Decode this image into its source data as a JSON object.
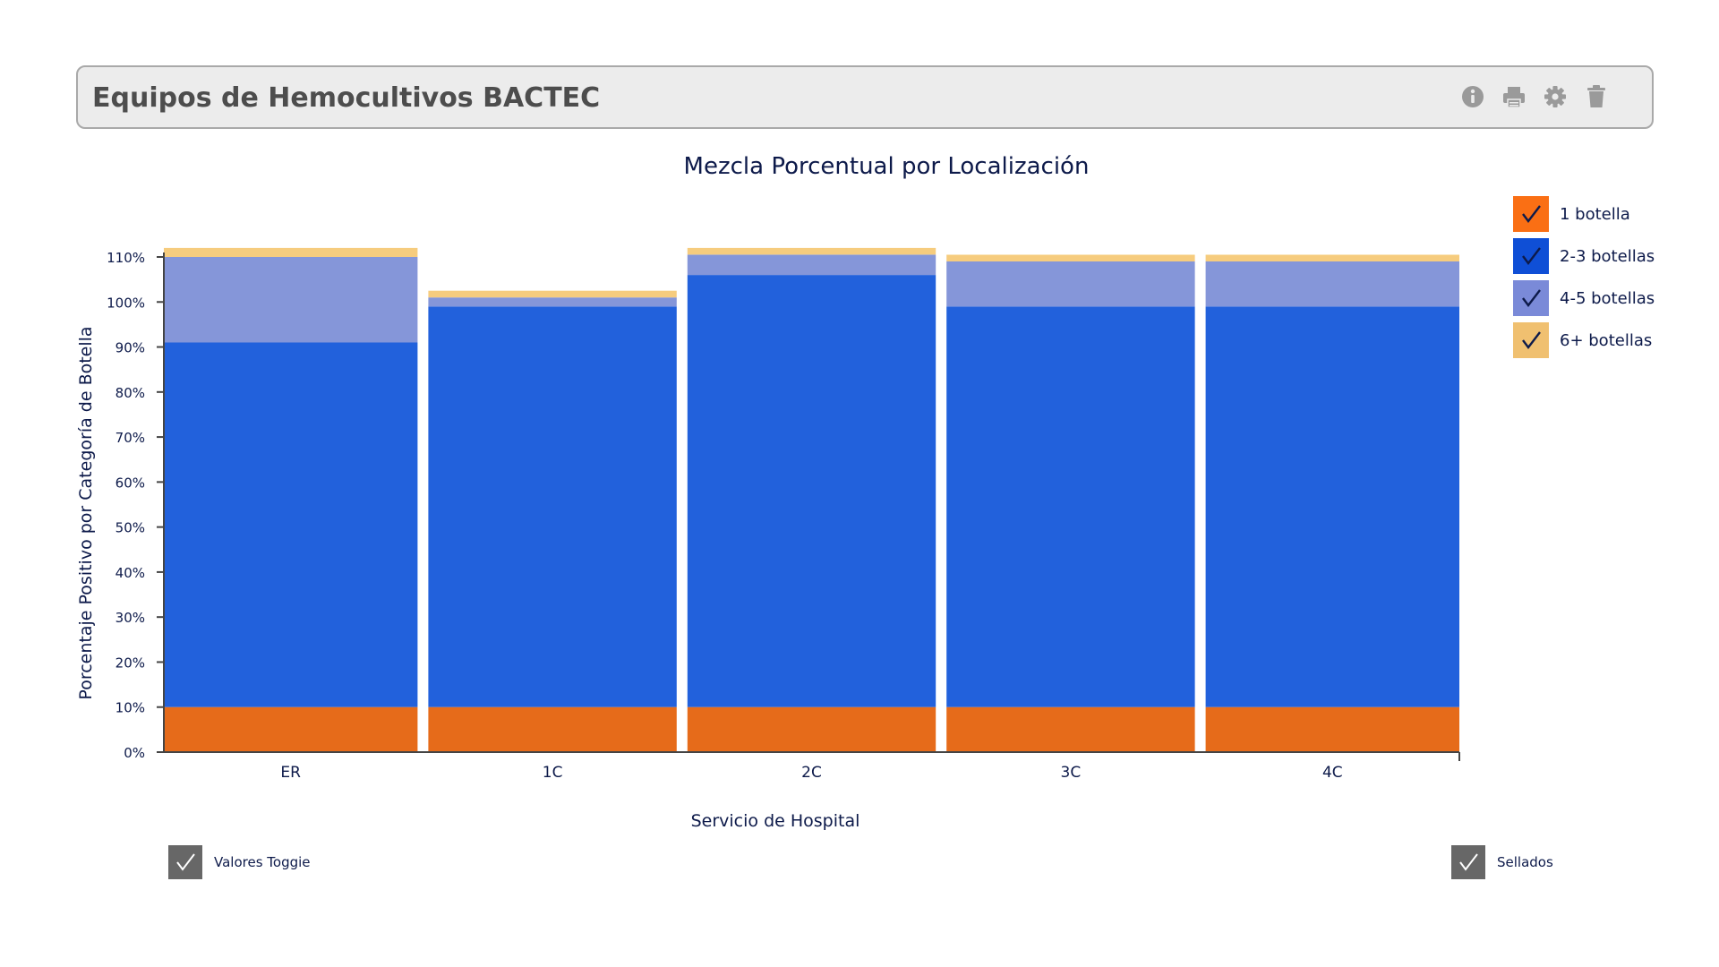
{
  "header": {
    "title": "Equipos de Hemocultivos BACTEC",
    "icons": [
      "info-icon",
      "print-icon",
      "gear-icon",
      "trash-icon"
    ],
    "icon_color": "#9a9a9a"
  },
  "chart_data": {
    "type": "bar",
    "stacked": true,
    "title": "Mezcla Porcentual por Localización",
    "xlabel": "Servicio de Hospital",
    "ylabel": "Porcentaje Positivo por Categoría de Botella",
    "categories": [
      "ER",
      "1C",
      "2C",
      "3C",
      "4C"
    ],
    "yticks": [
      "0%",
      "10%",
      "20%",
      "30%",
      "40%",
      "50%",
      "60%",
      "70%",
      "80%",
      "90%",
      "100%",
      "110%"
    ],
    "ylim": [
      0,
      110
    ],
    "series": [
      {
        "name": "1 botella",
        "color": "#e66b1a",
        "values": [
          10,
          10,
          10,
          10,
          10
        ]
      },
      {
        "name": "2-3 botellas",
        "color": "#2261dc",
        "values": [
          81,
          89,
          96,
          89,
          89
        ]
      },
      {
        "name": "4-5 botellas",
        "color": "#8596d9",
        "values": [
          19,
          2,
          4.5,
          10,
          10
        ]
      },
      {
        "name": "6+ botellas",
        "color": "#f6cc7e",
        "values": [
          2,
          1.5,
          1.5,
          1.5,
          1.5
        ]
      }
    ],
    "legend_position": "top-right",
    "grid": false
  },
  "legend": {
    "items": [
      {
        "label": "1 botella",
        "color": "#fa6f14"
      },
      {
        "label": "2-3 botellas",
        "color": "#0f4fd6"
      },
      {
        "label": "4-5 botellas",
        "color": "#7a8ad8"
      },
      {
        "label": "6+ botellas",
        "color": "#f0c070"
      }
    ]
  },
  "toggles": {
    "values": {
      "label": "Valores Toggie",
      "checked": true
    },
    "sealed": {
      "label": "Sellados",
      "checked": true
    }
  }
}
